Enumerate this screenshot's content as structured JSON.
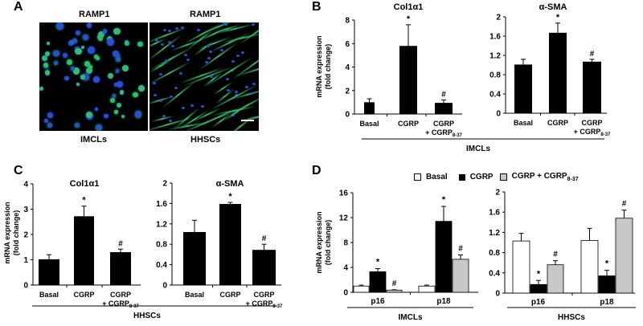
{
  "panels": {
    "A": {
      "letter": "A",
      "images": [
        {
          "title": "RAMP1",
          "caption": "IMCLs"
        },
        {
          "title": "RAMP1",
          "caption": "HHSCs"
        }
      ]
    },
    "B": {
      "letter": "B",
      "group_label": "IMCLs"
    },
    "C": {
      "letter": "C",
      "group_label": "HHSCs"
    },
    "D": {
      "letter": "D",
      "group_labels": [
        "IMCLs",
        "HHSCs"
      ]
    }
  },
  "legend": {
    "items": [
      {
        "label": "Basal",
        "color": "#ffffff"
      },
      {
        "label": "CGRP",
        "color": "#000000"
      },
      {
        "label": "CGRP + CGRP",
        "subscript": "8-37",
        "color": "#c8c8c8"
      }
    ]
  },
  "colors": {
    "basal": "#ffffff",
    "cgrp": "#000000",
    "cgrp_antagonist": "#c8c8c8",
    "micro_green": "#2fbf6a",
    "micro_blue": "#2a4fd6"
  },
  "chart_data": [
    {
      "id": "B-col1a1",
      "type": "bar",
      "title": "Col1α1",
      "ylabel": "mRNA expression (fold change)",
      "xlabel": "IMCLs",
      "categories": [
        "Basal",
        "CGRP",
        "CGRP + CGRP8-37"
      ],
      "values": [
        1.0,
        5.8,
        0.95
      ],
      "errors": [
        0.3,
        1.8,
        0.25
      ],
      "annotations": [
        "",
        "*",
        "#"
      ],
      "ylim": [
        0,
        8
      ],
      "yticks": [
        0,
        2,
        4,
        6,
        8
      ]
    },
    {
      "id": "B-asma",
      "type": "bar",
      "title": "α-SMA",
      "ylabel": "",
      "xlabel": "IMCLs",
      "categories": [
        "Basal",
        "CGRP",
        "CGRP + CGRP8-37"
      ],
      "values": [
        1.01,
        1.67,
        1.07
      ],
      "errors": [
        0.11,
        0.2,
        0.05
      ],
      "annotations": [
        "",
        "*",
        "#"
      ],
      "ylim": [
        0,
        2
      ],
      "yticks": [
        0,
        0.4,
        0.8,
        1.2,
        1.6,
        2
      ]
    },
    {
      "id": "C-col1a1",
      "type": "bar",
      "title": "Col1α1",
      "ylabel": "mRNA expression (fold change)",
      "xlabel": "HHSCs",
      "categories": [
        "Basal",
        "CGRP",
        "CGRP + CGRP8-37"
      ],
      "values": [
        1.02,
        2.72,
        1.3
      ],
      "errors": [
        0.18,
        0.4,
        0.12
      ],
      "annotations": [
        "",
        "*",
        "#"
      ],
      "ylim": [
        0,
        4
      ],
      "yticks": [
        0,
        1,
        2,
        3,
        4
      ]
    },
    {
      "id": "C-asma",
      "type": "bar",
      "title": "α-SMA",
      "ylabel": "",
      "xlabel": "HHSCs",
      "categories": [
        "Basal",
        "CGRP",
        "CGRP + CGRP8-37"
      ],
      "values": [
        1.04,
        1.59,
        0.69
      ],
      "errors": [
        0.23,
        0.03,
        0.11
      ],
      "annotations": [
        "",
        "*",
        "#"
      ],
      "ylim": [
        0,
        2
      ],
      "yticks": [
        0,
        0.4,
        0.8,
        1.2,
        1.6,
        2
      ]
    },
    {
      "id": "D-imcls",
      "type": "bar",
      "title": "",
      "ylabel": "mRNA expression (fold change)",
      "xlabel": "IMCLs",
      "categories": [
        "p16",
        "p18"
      ],
      "series": [
        {
          "name": "Basal",
          "values": [
            1.0,
            1.0
          ],
          "errors": [
            0.15,
            0.15
          ],
          "annotations": [
            "",
            ""
          ]
        },
        {
          "name": "CGRP",
          "values": [
            3.3,
            11.4
          ],
          "errors": [
            0.5,
            2.4
          ],
          "annotations": [
            "*",
            "*"
          ]
        },
        {
          "name": "CGRP + CGRP8-37",
          "values": [
            0.35,
            5.3
          ],
          "errors": [
            0.05,
            0.7
          ],
          "annotations": [
            "#",
            "#"
          ]
        }
      ],
      "ylim": [
        0,
        16
      ],
      "yticks": [
        0,
        4,
        8,
        12,
        16
      ],
      "legend_position": "top"
    },
    {
      "id": "D-hhscs",
      "type": "bar",
      "title": "",
      "ylabel": "",
      "xlabel": "HHSCs",
      "categories": [
        "p16",
        "p18"
      ],
      "series": [
        {
          "name": "Basal",
          "values": [
            1.03,
            1.04
          ],
          "errors": [
            0.15,
            0.24
          ],
          "annotations": [
            "",
            ""
          ]
        },
        {
          "name": "CGRP",
          "values": [
            0.17,
            0.34
          ],
          "errors": [
            0.08,
            0.11
          ],
          "annotations": [
            "*",
            "*"
          ]
        },
        {
          "name": "CGRP + CGRP8-37",
          "values": [
            0.56,
            1.48
          ],
          "errors": [
            0.08,
            0.16
          ],
          "annotations": [
            "#",
            "#"
          ]
        }
      ],
      "ylim": [
        0,
        2
      ],
      "yticks": [
        0,
        0.4,
        0.8,
        1.2,
        1.6,
        2
      ],
      "legend_position": "top"
    }
  ]
}
